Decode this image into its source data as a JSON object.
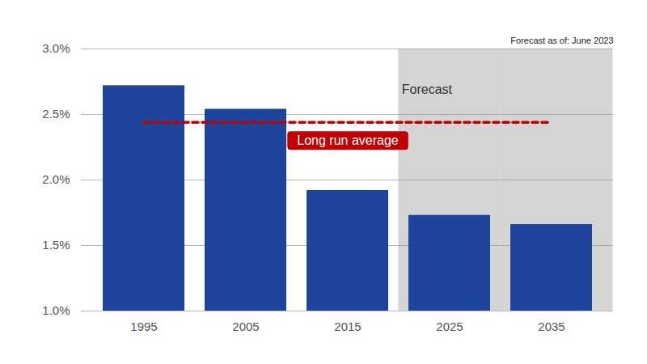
{
  "chart_data": {
    "type": "bar",
    "categories": [
      "1995",
      "2005",
      "2015",
      "2025",
      "2035"
    ],
    "values": [
      2.72,
      2.54,
      1.92,
      1.73,
      1.66
    ],
    "color": "#1f449c",
    "ylim": [
      1.0,
      3.0
    ],
    "yticks": [
      {
        "value": 1.0,
        "label": "1.0%"
      },
      {
        "value": 1.5,
        "label": "1.5%"
      },
      {
        "value": 2.0,
        "label": "2.0%"
      },
      {
        "value": 2.5,
        "label": "2.5%"
      },
      {
        "value": 3.0,
        "label": "3.0%"
      }
    ],
    "grid": true,
    "reference_line": {
      "label": "Long run average",
      "value": 2.44,
      "color": "#c00000"
    },
    "forecast": {
      "label": "Forecast",
      "categories": [
        "2025",
        "2035"
      ]
    },
    "note": "Forecast as of: June 2023"
  }
}
